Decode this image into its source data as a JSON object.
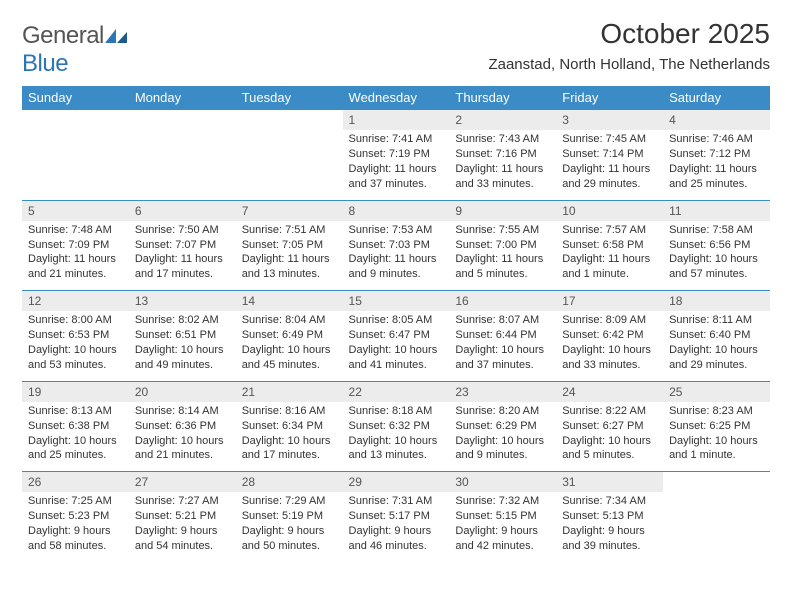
{
  "logo": {
    "text1": "General",
    "text2": "Blue"
  },
  "title": "October 2025",
  "location": "Zaanstad, North Holland, The Netherlands",
  "colors": {
    "headerBg": "#3b8bc6",
    "headerText": "#ffffff",
    "dayNumBg": "#ececec",
    "borderColor": "#3b8bc6",
    "textColor": "#333333",
    "logoGray": "#555555",
    "logoBlue": "#2e75b6"
  },
  "dayHeaders": [
    "Sunday",
    "Monday",
    "Tuesday",
    "Wednesday",
    "Thursday",
    "Friday",
    "Saturday"
  ],
  "weeks": [
    [
      {
        "day": "",
        "sunrise": "",
        "sunset": "",
        "daylight": ""
      },
      {
        "day": "",
        "sunrise": "",
        "sunset": "",
        "daylight": ""
      },
      {
        "day": "",
        "sunrise": "",
        "sunset": "",
        "daylight": ""
      },
      {
        "day": "1",
        "sunrise": "Sunrise: 7:41 AM",
        "sunset": "Sunset: 7:19 PM",
        "daylight": "Daylight: 11 hours and 37 minutes."
      },
      {
        "day": "2",
        "sunrise": "Sunrise: 7:43 AM",
        "sunset": "Sunset: 7:16 PM",
        "daylight": "Daylight: 11 hours and 33 minutes."
      },
      {
        "day": "3",
        "sunrise": "Sunrise: 7:45 AM",
        "sunset": "Sunset: 7:14 PM",
        "daylight": "Daylight: 11 hours and 29 minutes."
      },
      {
        "day": "4",
        "sunrise": "Sunrise: 7:46 AM",
        "sunset": "Sunset: 7:12 PM",
        "daylight": "Daylight: 11 hours and 25 minutes."
      }
    ],
    [
      {
        "day": "5",
        "sunrise": "Sunrise: 7:48 AM",
        "sunset": "Sunset: 7:09 PM",
        "daylight": "Daylight: 11 hours and 21 minutes."
      },
      {
        "day": "6",
        "sunrise": "Sunrise: 7:50 AM",
        "sunset": "Sunset: 7:07 PM",
        "daylight": "Daylight: 11 hours and 17 minutes."
      },
      {
        "day": "7",
        "sunrise": "Sunrise: 7:51 AM",
        "sunset": "Sunset: 7:05 PM",
        "daylight": "Daylight: 11 hours and 13 minutes."
      },
      {
        "day": "8",
        "sunrise": "Sunrise: 7:53 AM",
        "sunset": "Sunset: 7:03 PM",
        "daylight": "Daylight: 11 hours and 9 minutes."
      },
      {
        "day": "9",
        "sunrise": "Sunrise: 7:55 AM",
        "sunset": "Sunset: 7:00 PM",
        "daylight": "Daylight: 11 hours and 5 minutes."
      },
      {
        "day": "10",
        "sunrise": "Sunrise: 7:57 AM",
        "sunset": "Sunset: 6:58 PM",
        "daylight": "Daylight: 11 hours and 1 minute."
      },
      {
        "day": "11",
        "sunrise": "Sunrise: 7:58 AM",
        "sunset": "Sunset: 6:56 PM",
        "daylight": "Daylight: 10 hours and 57 minutes."
      }
    ],
    [
      {
        "day": "12",
        "sunrise": "Sunrise: 8:00 AM",
        "sunset": "Sunset: 6:53 PM",
        "daylight": "Daylight: 10 hours and 53 minutes."
      },
      {
        "day": "13",
        "sunrise": "Sunrise: 8:02 AM",
        "sunset": "Sunset: 6:51 PM",
        "daylight": "Daylight: 10 hours and 49 minutes."
      },
      {
        "day": "14",
        "sunrise": "Sunrise: 8:04 AM",
        "sunset": "Sunset: 6:49 PM",
        "daylight": "Daylight: 10 hours and 45 minutes."
      },
      {
        "day": "15",
        "sunrise": "Sunrise: 8:05 AM",
        "sunset": "Sunset: 6:47 PM",
        "daylight": "Daylight: 10 hours and 41 minutes."
      },
      {
        "day": "16",
        "sunrise": "Sunrise: 8:07 AM",
        "sunset": "Sunset: 6:44 PM",
        "daylight": "Daylight: 10 hours and 37 minutes."
      },
      {
        "day": "17",
        "sunrise": "Sunrise: 8:09 AM",
        "sunset": "Sunset: 6:42 PM",
        "daylight": "Daylight: 10 hours and 33 minutes."
      },
      {
        "day": "18",
        "sunrise": "Sunrise: 8:11 AM",
        "sunset": "Sunset: 6:40 PM",
        "daylight": "Daylight: 10 hours and 29 minutes."
      }
    ],
    [
      {
        "day": "19",
        "sunrise": "Sunrise: 8:13 AM",
        "sunset": "Sunset: 6:38 PM",
        "daylight": "Daylight: 10 hours and 25 minutes."
      },
      {
        "day": "20",
        "sunrise": "Sunrise: 8:14 AM",
        "sunset": "Sunset: 6:36 PM",
        "daylight": "Daylight: 10 hours and 21 minutes."
      },
      {
        "day": "21",
        "sunrise": "Sunrise: 8:16 AM",
        "sunset": "Sunset: 6:34 PM",
        "daylight": "Daylight: 10 hours and 17 minutes."
      },
      {
        "day": "22",
        "sunrise": "Sunrise: 8:18 AM",
        "sunset": "Sunset: 6:32 PM",
        "daylight": "Daylight: 10 hours and 13 minutes."
      },
      {
        "day": "23",
        "sunrise": "Sunrise: 8:20 AM",
        "sunset": "Sunset: 6:29 PM",
        "daylight": "Daylight: 10 hours and 9 minutes."
      },
      {
        "day": "24",
        "sunrise": "Sunrise: 8:22 AM",
        "sunset": "Sunset: 6:27 PM",
        "daylight": "Daylight: 10 hours and 5 minutes."
      },
      {
        "day": "25",
        "sunrise": "Sunrise: 8:23 AM",
        "sunset": "Sunset: 6:25 PM",
        "daylight": "Daylight: 10 hours and 1 minute."
      }
    ],
    [
      {
        "day": "26",
        "sunrise": "Sunrise: 7:25 AM",
        "sunset": "Sunset: 5:23 PM",
        "daylight": "Daylight: 9 hours and 58 minutes."
      },
      {
        "day": "27",
        "sunrise": "Sunrise: 7:27 AM",
        "sunset": "Sunset: 5:21 PM",
        "daylight": "Daylight: 9 hours and 54 minutes."
      },
      {
        "day": "28",
        "sunrise": "Sunrise: 7:29 AM",
        "sunset": "Sunset: 5:19 PM",
        "daylight": "Daylight: 9 hours and 50 minutes."
      },
      {
        "day": "29",
        "sunrise": "Sunrise: 7:31 AM",
        "sunset": "Sunset: 5:17 PM",
        "daylight": "Daylight: 9 hours and 46 minutes."
      },
      {
        "day": "30",
        "sunrise": "Sunrise: 7:32 AM",
        "sunset": "Sunset: 5:15 PM",
        "daylight": "Daylight: 9 hours and 42 minutes."
      },
      {
        "day": "31",
        "sunrise": "Sunrise: 7:34 AM",
        "sunset": "Sunset: 5:13 PM",
        "daylight": "Daylight: 9 hours and 39 minutes."
      },
      {
        "day": "",
        "sunrise": "",
        "sunset": "",
        "daylight": ""
      }
    ]
  ]
}
